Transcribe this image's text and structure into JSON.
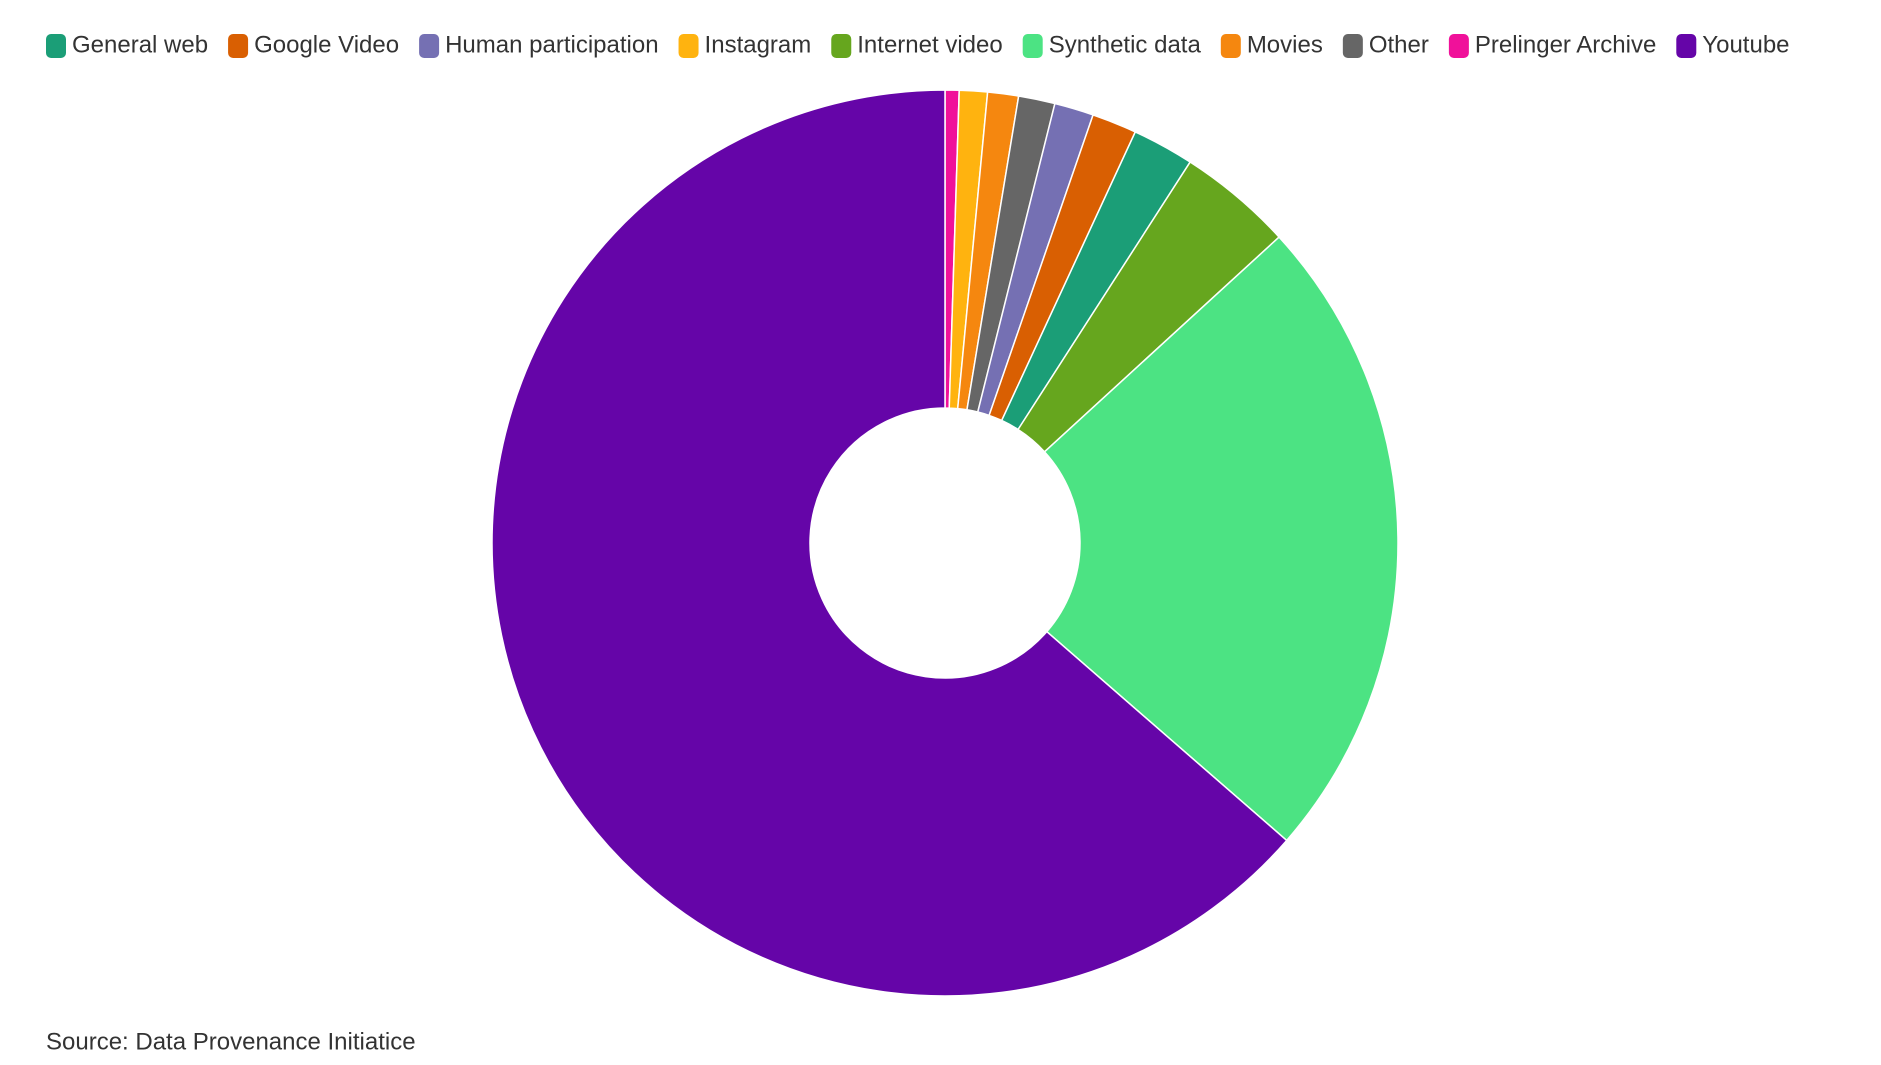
{
  "chart_data": {
    "type": "donut",
    "categories": [
      "General web",
      "Google Video",
      "Human participation",
      "Instagram",
      "Internet video",
      "Synthetic data",
      "Movies",
      "Other",
      "Prelinger Archive",
      "Youtube"
    ],
    "values": [
      2.2,
      1.6,
      1.4,
      1.0,
      4.1,
      23.2,
      1.1,
      1.3,
      0.5,
      63.6
    ],
    "colors": [
      "#1b9e77",
      "#d95f02",
      "#7570b3",
      "#ffb30f",
      "#66a61e",
      "#4ce383",
      "#f5870f",
      "#666666",
      "#f0119a",
      "#6505a8"
    ],
    "legend": "top-left",
    "source": "Source: Data Provenance Initiatice"
  }
}
